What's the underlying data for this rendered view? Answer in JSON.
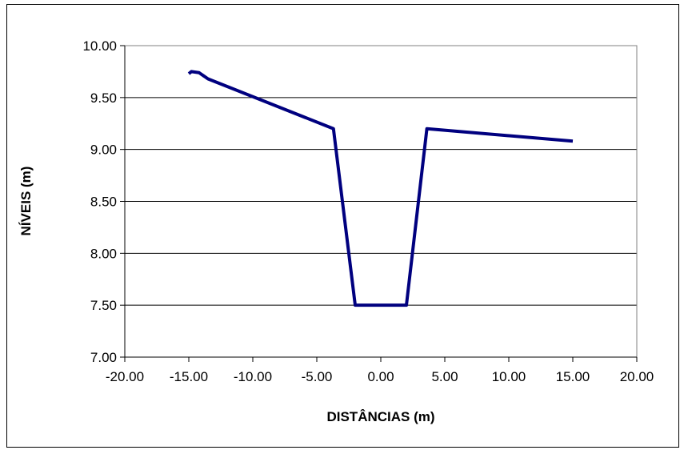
{
  "chart_data": {
    "type": "line",
    "title": "",
    "xlabel": "DISTÂNCIAS (m)",
    "ylabel": "NÍVEIS (m)",
    "xlim": [
      -20,
      20
    ],
    "ylim": [
      7,
      10
    ],
    "x_ticks": [
      -20,
      -15,
      -10,
      -5,
      0,
      5,
      10,
      15,
      20
    ],
    "y_ticks": [
      7,
      7.5,
      8,
      8.5,
      9,
      9.5,
      10
    ],
    "x_tick_labels": [
      "-20.00",
      "-15.00",
      "-10.00",
      "-5.00",
      "0.00",
      "5.00",
      "10.00",
      "15.00",
      "20.00"
    ],
    "y_tick_labels": [
      "7.00",
      "7.50",
      "8.00",
      "8.50",
      "9.00",
      "9.50",
      "10.00"
    ],
    "grid": "horizontal",
    "legend": "none",
    "series": [
      {
        "color": "#00007f",
        "points": [
          [
            -15.0,
            9.73
          ],
          [
            -14.8,
            9.75
          ],
          [
            -14.2,
            9.74
          ],
          [
            -13.5,
            9.68
          ],
          [
            -3.7,
            9.2
          ],
          [
            -2.0,
            7.5
          ],
          [
            2.0,
            7.5
          ],
          [
            3.6,
            9.2
          ],
          [
            15.0,
            9.08
          ]
        ]
      }
    ]
  }
}
